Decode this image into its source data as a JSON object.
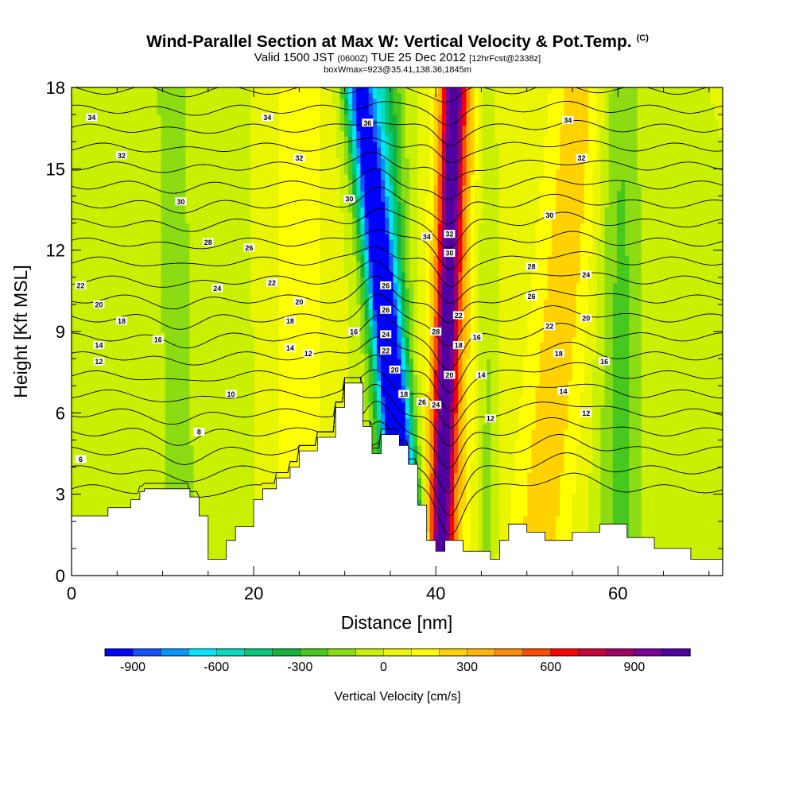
{
  "header": {
    "title": "Wind-Parallel Section at Max W: Vertical Velocity & Pot.Temp.",
    "title_mark": "(C)",
    "subtitle_valid": "Valid 1500 JST",
    "subtitle_z": "(0600Z)",
    "subtitle_date": "TUE 25 Dec 2012",
    "subtitle_fcst": "[12hrFcst@2338z]",
    "subtitle2": "boxWmax=923@35.41,138.36,1845m"
  },
  "chart_data": {
    "type": "heatmap",
    "xlabel": "Distance [nm]",
    "ylabel": "Height [Kft MSL]",
    "xlim": [
      0,
      71.5
    ],
    "ylim": [
      0,
      18
    ],
    "xticks": [
      0,
      20,
      40,
      60
    ],
    "yticks": [
      0,
      3,
      6,
      9,
      12,
      15,
      18
    ],
    "colorbar": {
      "title": "Vertical Velocity [cm/s]",
      "tick_values": [
        -900,
        -600,
        -300,
        0,
        300,
        600,
        900
      ],
      "tick_labels": [
        "-900",
        "-600",
        "-300",
        "0",
        "300",
        "600",
        "900"
      ],
      "bin_step": 100,
      "range": [
        -1000,
        1100
      ],
      "colors": [
        "#0000ff",
        "#1750ff",
        "#0096ff",
        "#00e6ff",
        "#00dcbe",
        "#00c878",
        "#14b43c",
        "#46c81e",
        "#8cdc14",
        "#c8f000",
        "#eaf500",
        "#ffff00",
        "#ffd200",
        "#ffb400",
        "#ff8c00",
        "#ff4b00",
        "#ff0000",
        "#c8003c",
        "#a00064",
        "#780096",
        "#5000a0"
      ]
    },
    "velocity_features": [
      {
        "kind": "downdraft",
        "x_base": 37.5,
        "x_top": 31.5,
        "amplitude": -880,
        "width": 1.6
      },
      {
        "kind": "downdraft",
        "x_base": 36.0,
        "x_top": 34.0,
        "amplitude": -450,
        "width": 2.2
      },
      {
        "kind": "updraft",
        "x_base": 40.5,
        "x_top": 42.0,
        "amplitude": 930,
        "width": 1.3
      },
      {
        "kind": "updraft",
        "x_base": 41.0,
        "x_top": 43.0,
        "amplitude": 230,
        "width": 3.5
      },
      {
        "kind": "downdraft",
        "x_base": 45.5,
        "x_top": 45.5,
        "amplitude": -180,
        "width": 1.2
      },
      {
        "kind": "updraft",
        "x_base": 51.0,
        "x_top": 56.0,
        "amplitude": 260,
        "width": 3.5
      },
      {
        "kind": "downdraft",
        "x_base": 60.5,
        "x_top": 60.0,
        "amplitude": -230,
        "width": 2.5
      },
      {
        "kind": "updraft",
        "x_base": 25.0,
        "x_top": 25.0,
        "amplitude": 190,
        "width": 3.0
      },
      {
        "kind": "downdraft",
        "x_base": 12.0,
        "x_top": 11.0,
        "amplitude": -140,
        "width": 2.5
      },
      {
        "kind": "downdraft",
        "x_base": 18.0,
        "x_top": 16.5,
        "amplitude": -90,
        "width": 1.8
      }
    ],
    "terrain": [
      [
        0,
        2.2
      ],
      [
        4,
        2.2
      ],
      [
        4,
        2.5
      ],
      [
        6.5,
        2.5
      ],
      [
        6.5,
        2.8
      ],
      [
        7.5,
        2.8
      ],
      [
        7.5,
        3.1
      ],
      [
        8,
        3.1
      ],
      [
        8,
        3.2
      ],
      [
        13,
        3.2
      ],
      [
        13,
        2.9
      ],
      [
        14,
        2.9
      ],
      [
        14,
        2.2
      ],
      [
        15,
        2.2
      ],
      [
        15,
        0.6
      ],
      [
        17,
        0.6
      ],
      [
        17,
        1.3
      ],
      [
        18,
        1.3
      ],
      [
        18,
        1.8
      ],
      [
        20,
        1.8
      ],
      [
        20,
        2.8
      ],
      [
        21,
        2.8
      ],
      [
        21,
        3.2
      ],
      [
        22.5,
        3.2
      ],
      [
        22.5,
        3.6
      ],
      [
        24,
        3.6
      ],
      [
        24,
        4.0
      ],
      [
        25,
        4.0
      ],
      [
        25,
        4.6
      ],
      [
        27,
        4.6
      ],
      [
        27,
        5.1
      ],
      [
        29,
        5.1
      ],
      [
        29,
        6.2
      ],
      [
        30,
        6.2
      ],
      [
        30,
        7.1
      ],
      [
        32,
        7.1
      ],
      [
        32,
        5.5
      ],
      [
        33,
        5.5
      ],
      [
        33,
        4.5
      ],
      [
        34,
        4.5
      ],
      [
        34,
        5.2
      ],
      [
        36,
        5.2
      ],
      [
        36,
        4.8
      ],
      [
        37,
        4.8
      ],
      [
        37,
        4.1
      ],
      [
        38,
        4.1
      ],
      [
        38,
        2.6
      ],
      [
        39,
        2.6
      ],
      [
        39,
        1.3
      ],
      [
        40,
        1.3
      ],
      [
        40,
        0.9
      ],
      [
        41,
        0.9
      ],
      [
        41,
        1.3
      ],
      [
        43,
        1.3
      ],
      [
        43,
        0.9
      ],
      [
        46,
        0.9
      ],
      [
        46,
        0.6
      ],
      [
        47,
        0.6
      ],
      [
        47,
        1.3
      ],
      [
        48,
        1.3
      ],
      [
        48,
        1.9
      ],
      [
        50,
        1.9
      ],
      [
        50,
        1.6
      ],
      [
        52,
        1.6
      ],
      [
        52,
        1.3
      ],
      [
        55,
        1.3
      ],
      [
        55,
        1.6
      ],
      [
        58,
        1.6
      ],
      [
        58,
        1.9
      ],
      [
        61,
        1.9
      ],
      [
        61,
        1.4
      ],
      [
        64,
        1.4
      ],
      [
        64,
        1.0
      ],
      [
        68,
        1.0
      ],
      [
        68,
        0.6
      ],
      [
        71.5,
        0.6
      ]
    ],
    "theta_contours": {
      "units": "K",
      "base": [
        6,
        8,
        10,
        12,
        14,
        16,
        18,
        20,
        22,
        24,
        26,
        28,
        30,
        32,
        34,
        36
      ],
      "levels_count": 22,
      "labels": [
        {
          "text": "34",
          "x": 2.2,
          "y": 16.9
        },
        {
          "text": "32",
          "x": 5.5,
          "y": 15.5
        },
        {
          "text": "30",
          "x": 12,
          "y": 13.8
        },
        {
          "text": "28",
          "x": 15,
          "y": 12.3
        },
        {
          "text": "26",
          "x": 19.5,
          "y": 12.1
        },
        {
          "text": "24",
          "x": 16,
          "y": 10.6
        },
        {
          "text": "22",
          "x": 1,
          "y": 10.7
        },
        {
          "text": "20",
          "x": 3,
          "y": 10.0
        },
        {
          "text": "18",
          "x": 5.5,
          "y": 9.4
        },
        {
          "text": "16",
          "x": 9.5,
          "y": 8.7
        },
        {
          "text": "14",
          "x": 3,
          "y": 8.5
        },
        {
          "text": "12",
          "x": 3,
          "y": 7.9
        },
        {
          "text": "10",
          "x": 17.5,
          "y": 6.7
        },
        {
          "text": "8",
          "x": 14,
          "y": 5.3
        },
        {
          "text": "6",
          "x": 1,
          "y": 4.3
        },
        {
          "text": "34",
          "x": 21.5,
          "y": 16.9
        },
        {
          "text": "32",
          "x": 25,
          "y": 15.4
        },
        {
          "text": "22",
          "x": 22,
          "y": 10.8
        },
        {
          "text": "20",
          "x": 25,
          "y": 10.1
        },
        {
          "text": "18",
          "x": 24,
          "y": 9.4
        },
        {
          "text": "14",
          "x": 24,
          "y": 8.4
        },
        {
          "text": "12",
          "x": 26,
          "y": 8.2
        },
        {
          "text": "36",
          "x": 32.5,
          "y": 16.7
        },
        {
          "text": "30",
          "x": 30.5,
          "y": 13.9
        },
        {
          "text": "16",
          "x": 31,
          "y": 9.0
        },
        {
          "text": "26",
          "x": 34.5,
          "y": 10.7
        },
        {
          "text": "26",
          "x": 34.5,
          "y": 9.8
        },
        {
          "text": "24",
          "x": 34.5,
          "y": 8.9
        },
        {
          "text": "22",
          "x": 34.5,
          "y": 8.3
        },
        {
          "text": "20",
          "x": 35.5,
          "y": 7.6
        },
        {
          "text": "18",
          "x": 36.5,
          "y": 6.7
        },
        {
          "text": "26",
          "x": 38.5,
          "y": 6.4
        },
        {
          "text": "24",
          "x": 40,
          "y": 6.3
        },
        {
          "text": "34",
          "x": 39,
          "y": 12.5
        },
        {
          "text": "32",
          "x": 41.5,
          "y": 12.6
        },
        {
          "text": "30",
          "x": 41.5,
          "y": 11.9
        },
        {
          "text": "28",
          "x": 40,
          "y": 9.0
        },
        {
          "text": "22",
          "x": 42.5,
          "y": 9.6
        },
        {
          "text": "18",
          "x": 42.5,
          "y": 8.5
        },
        {
          "text": "20",
          "x": 41.5,
          "y": 7.4
        },
        {
          "text": "16",
          "x": 44.5,
          "y": 8.8
        },
        {
          "text": "14",
          "x": 45,
          "y": 7.4
        },
        {
          "text": "12",
          "x": 46,
          "y": 5.8
        },
        {
          "text": "34",
          "x": 54.5,
          "y": 16.8
        },
        {
          "text": "32",
          "x": 56,
          "y": 15.4
        },
        {
          "text": "30",
          "x": 52.5,
          "y": 13.3
        },
        {
          "text": "28",
          "x": 50.5,
          "y": 11.4
        },
        {
          "text": "26",
          "x": 50.5,
          "y": 10.3
        },
        {
          "text": "24",
          "x": 56.5,
          "y": 11.1
        },
        {
          "text": "22",
          "x": 52.5,
          "y": 9.2
        },
        {
          "text": "20",
          "x": 56.5,
          "y": 9.5
        },
        {
          "text": "18",
          "x": 53.5,
          "y": 8.2
        },
        {
          "text": "16",
          "x": 58.5,
          "y": 7.9
        },
        {
          "text": "14",
          "x": 54,
          "y": 6.8
        },
        {
          "text": "12",
          "x": 56.5,
          "y": 6.0
        }
      ]
    }
  }
}
